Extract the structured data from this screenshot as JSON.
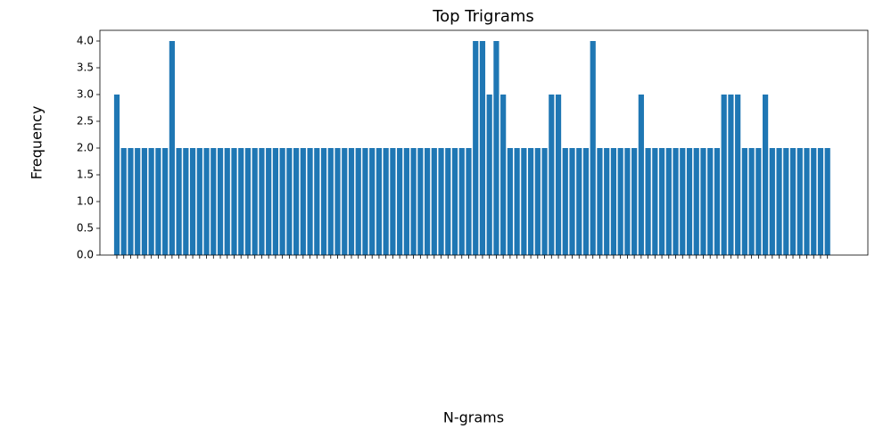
{
  "chart_data": {
    "type": "bar",
    "title": "Top Trigrams",
    "x_label": "N-grams",
    "y_label": "Frequency",
    "color": "#1f77b4",
    "categories": [
      null,
      null,
      null,
      null,
      null,
      null,
      null,
      null,
      null,
      null,
      null,
      null,
      null,
      null,
      null,
      null,
      null,
      null,
      null,
      null,
      null,
      null,
      null,
      null,
      null,
      null,
      null,
      null,
      null,
      null,
      null,
      null,
      null,
      null,
      null,
      null,
      null,
      null,
      null,
      null,
      null,
      null,
      null,
      null,
      null,
      null,
      null,
      null,
      null,
      null,
      null,
      null,
      null,
      null,
      null,
      null,
      null,
      null,
      null,
      null,
      null,
      null,
      null,
      null,
      null,
      null,
      null,
      null,
      null,
      null,
      null,
      null,
      null,
      null,
      null,
      null,
      null,
      null,
      null,
      null,
      null,
      null,
      null,
      null,
      null,
      null,
      null,
      null,
      null,
      null,
      null,
      null,
      null,
      null,
      null,
      null,
      null,
      null,
      null,
      null,
      null,
      null,
      null,
      null
    ],
    "values": [
      3,
      2,
      2,
      2,
      2,
      2,
      2,
      2,
      4,
      2,
      2,
      2,
      2,
      2,
      2,
      2,
      2,
      2,
      2,
      2,
      2,
      2,
      2,
      2,
      2,
      2,
      2,
      2,
      2,
      2,
      2,
      2,
      2,
      2,
      2,
      2,
      2,
      2,
      2,
      2,
      2,
      2,
      2,
      2,
      2,
      2,
      2,
      2,
      2,
      2,
      2,
      2,
      4,
      4,
      3,
      4,
      3,
      2,
      2,
      2,
      2,
      2,
      2,
      3,
      3,
      2,
      2,
      2,
      2,
      4,
      2,
      2,
      2,
      2,
      2,
      2,
      3,
      2,
      2,
      2,
      2,
      2,
      2,
      2,
      2,
      2,
      2,
      2,
      3,
      3,
      3,
      2,
      2,
      2,
      3,
      2,
      2,
      2,
      2,
      2,
      2,
      2,
      2,
      2
    ],
    "ylim": [
      0,
      4.2
    ],
    "yticks": [
      {
        "value": 0,
        "label": "0.0"
      },
      0.5,
      {
        "value": 1,
        "label": "1.0"
      },
      1.5,
      {
        "value": 2,
        "label": "2.0"
      },
      2.5,
      {
        "value": 3,
        "label": "3.0"
      },
      3.5,
      {
        "value": 4,
        "label": "4.0"
      }
    ],
    "grid": false
  }
}
